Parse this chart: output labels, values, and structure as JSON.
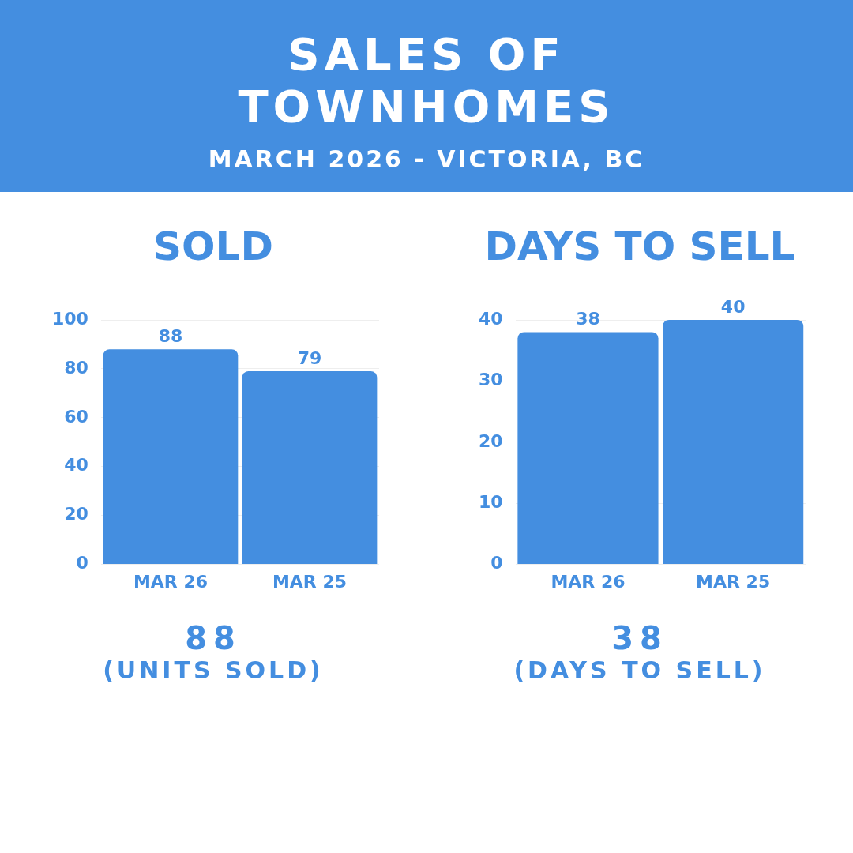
{
  "chart_data": [
    {
      "type": "other",
      "title": "SALES OF TOWNHOMES",
      "subtitle": "MARCH 2026 - VICTORIA, BC"
    },
    {
      "type": "bar",
      "title": "SOLD",
      "categories": [
        "MAR 26",
        "MAR 25"
      ],
      "values": [
        88,
        79
      ],
      "color": "#448ee0",
      "ylim": [
        0,
        100
      ],
      "yticks": [
        0,
        20,
        40,
        60,
        80,
        100
      ],
      "grid": "y",
      "data_labels": true,
      "annotations": [
        "88",
        "(UNITS SOLD)"
      ]
    },
    {
      "type": "bar",
      "title": "DAYS TO SELL",
      "categories": [
        "MAR 26",
        "MAR 25"
      ],
      "values": [
        38,
        40
      ],
      "color": "#448ee0",
      "ylim": [
        0,
        40
      ],
      "yticks": [
        0,
        10,
        20,
        30,
        40
      ],
      "grid": "y",
      "data_labels": true,
      "annotations": [
        "38",
        "(DAYS TO SELL)"
      ]
    }
  ]
}
